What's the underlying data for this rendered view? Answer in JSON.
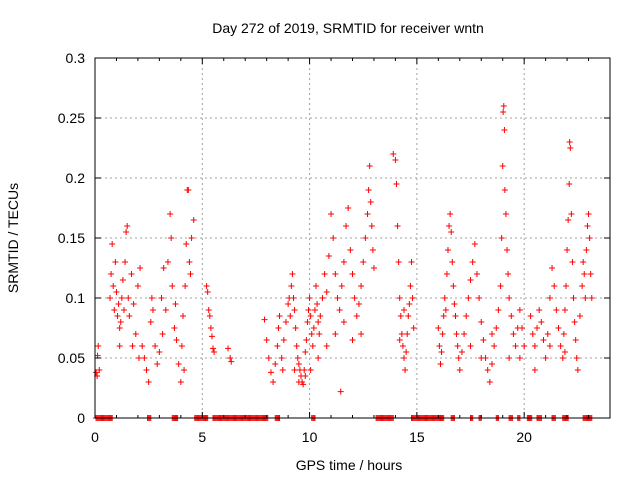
{
  "chart_data": {
    "type": "scatter",
    "title": "Day 272 of 2019, SRMTID for receiver wntn",
    "xlabel": "GPS time / hours",
    "ylabel": "SRMTID / TECUs",
    "xlim": [
      0,
      24
    ],
    "ylim": [
      0,
      0.3
    ],
    "grid": true,
    "marker": "+",
    "color": "#ff0000",
    "x_ticks": [
      0,
      5,
      10,
      15,
      20
    ],
    "x_tick_labels": [
      "0",
      "5",
      "10",
      "15",
      "20"
    ],
    "y_ticks": [
      0,
      0.05,
      0.1,
      0.15,
      0.2,
      0.25,
      0.3
    ],
    "y_tick_labels": [
      "0",
      "0.05",
      "0.1",
      "0.15",
      "0.2",
      "0.25",
      "0.3"
    ],
    "series": [
      {
        "name": "SRMTID",
        "points": [
          [
            0.05,
            0.038
          ],
          [
            0.1,
            0.035
          ],
          [
            0.15,
            0.06
          ],
          [
            0.2,
            0.04
          ],
          [
            0.12,
            0.052
          ],
          [
            0.7,
            0.1
          ],
          [
            0.75,
            0.12
          ],
          [
            0.8,
            0.145
          ],
          [
            0.85,
            0.11
          ],
          [
            0.9,
            0.09
          ],
          [
            0.95,
            0.13
          ],
          [
            1.0,
            0.105
          ],
          [
            1.05,
            0.085
          ],
          [
            1.1,
            0.095
          ],
          [
            1.15,
            0.06
          ],
          [
            1.2,
            0.08
          ],
          [
            1.25,
            0.1
          ],
          [
            1.3,
            0.115
          ],
          [
            1.35,
            0.09
          ],
          [
            1.4,
            0.13
          ],
          [
            1.45,
            0.155
          ],
          [
            1.5,
            0.16
          ],
          [
            1.55,
            0.1
          ],
          [
            1.6,
            0.085
          ],
          [
            1.7,
            0.12
          ],
          [
            1.8,
            0.095
          ],
          [
            1.9,
            0.07
          ],
          [
            2.0,
            0.11
          ],
          [
            2.1,
            0.125
          ],
          [
            2.2,
            0.06
          ],
          [
            2.3,
            0.05
          ],
          [
            2.4,
            0.04
          ],
          [
            2.5,
            0.03
          ],
          [
            2.6,
            0.08
          ],
          [
            2.7,
            0.09
          ],
          [
            2.8,
            0.06
          ],
          [
            2.9,
            0.045
          ],
          [
            3.0,
            0.055
          ],
          [
            3.1,
            0.1
          ],
          [
            3.2,
            0.125
          ],
          [
            3.3,
            0.09
          ],
          [
            3.4,
            0.13
          ],
          [
            3.5,
            0.17
          ],
          [
            3.55,
            0.15
          ],
          [
            3.6,
            0.11
          ],
          [
            3.7,
            0.075
          ],
          [
            3.8,
            0.065
          ],
          [
            3.9,
            0.045
          ],
          [
            4.0,
            0.03
          ],
          [
            4.05,
            0.06
          ],
          [
            4.1,
            0.085
          ],
          [
            4.2,
            0.11
          ],
          [
            4.25,
            0.145
          ],
          [
            4.3,
            0.19
          ],
          [
            4.35,
            0.19
          ],
          [
            4.4,
            0.13
          ],
          [
            4.45,
            0.12
          ],
          [
            4.5,
            0.15
          ],
          [
            4.6,
            0.165
          ],
          [
            1.15,
            0.075
          ],
          [
            1.75,
            0.06
          ],
          [
            2.05,
            0.05
          ],
          [
            2.65,
            0.1
          ],
          [
            3.15,
            0.07
          ],
          [
            3.75,
            0.095
          ],
          [
            4.15,
            0.04
          ],
          [
            5.2,
            0.11
          ],
          [
            5.25,
            0.105
          ],
          [
            5.3,
            0.09
          ],
          [
            5.35,
            0.085
          ],
          [
            5.4,
            0.075
          ],
          [
            5.45,
            0.068
          ],
          [
            5.5,
            0.058
          ],
          [
            5.55,
            0.055
          ],
          [
            6.2,
            0.058
          ],
          [
            6.3,
            0.05
          ],
          [
            6.35,
            0.047
          ],
          [
            7.9,
            0.082
          ],
          [
            8.0,
            0.065
          ],
          [
            8.1,
            0.05
          ],
          [
            8.2,
            0.038
          ],
          [
            8.3,
            0.03
          ],
          [
            8.4,
            0.045
          ],
          [
            8.5,
            0.06
          ],
          [
            8.55,
            0.075
          ],
          [
            8.6,
            0.085
          ],
          [
            8.7,
            0.05
          ],
          [
            8.75,
            0.04
          ],
          [
            8.8,
            0.065
          ],
          [
            8.9,
            0.08
          ],
          [
            9.0,
            0.095
          ],
          [
            9.05,
            0.1
          ],
          [
            9.1,
            0.085
          ],
          [
            9.15,
            0.11
          ],
          [
            9.2,
            0.12
          ],
          [
            9.25,
            0.1
          ],
          [
            9.3,
            0.09
          ],
          [
            9.35,
            0.075
          ],
          [
            9.4,
            0.06
          ],
          [
            9.45,
            0.05
          ],
          [
            9.5,
            0.045
          ],
          [
            9.55,
            0.04
          ],
          [
            9.6,
            0.035
          ],
          [
            9.65,
            0.03
          ],
          [
            9.7,
            0.028
          ],
          [
            9.75,
            0.04
          ],
          [
            9.8,
            0.055
          ],
          [
            9.85,
            0.065
          ],
          [
            9.9,
            0.08
          ],
          [
            9.95,
            0.09
          ],
          [
            10.0,
            0.1
          ],
          [
            10.05,
            0.085
          ],
          [
            10.1,
            0.07
          ],
          [
            10.15,
            0.06
          ],
          [
            10.2,
            0.075
          ],
          [
            10.25,
            0.09
          ],
          [
            10.3,
            0.11
          ],
          [
            10.35,
            0.095
          ],
          [
            10.4,
            0.08
          ],
          [
            10.45,
            0.07
          ],
          [
            10.5,
            0.085
          ],
          [
            10.6,
            0.1
          ],
          [
            10.7,
            0.12
          ],
          [
            10.8,
            0.105
          ],
          [
            10.9,
            0.135
          ],
          [
            11.0,
            0.17
          ],
          [
            11.1,
            0.15
          ],
          [
            11.2,
            0.12
          ],
          [
            11.3,
            0.1
          ],
          [
            11.4,
            0.09
          ],
          [
            11.5,
            0.11
          ],
          [
            11.6,
            0.13
          ],
          [
            11.7,
            0.16
          ],
          [
            11.8,
            0.175
          ],
          [
            11.9,
            0.14
          ],
          [
            12.0,
            0.12
          ],
          [
            12.1,
            0.1
          ],
          [
            12.2,
            0.085
          ],
          [
            12.3,
            0.095
          ],
          [
            12.4,
            0.11
          ],
          [
            12.5,
            0.13
          ],
          [
            12.6,
            0.15
          ],
          [
            12.7,
            0.17
          ],
          [
            12.75,
            0.19
          ],
          [
            12.8,
            0.21
          ],
          [
            12.85,
            0.18
          ],
          [
            12.9,
            0.16
          ],
          [
            12.95,
            0.14
          ],
          [
            13.0,
            0.125
          ],
          [
            9.3,
            0.04
          ],
          [
            9.5,
            0.03
          ],
          [
            9.8,
            0.035
          ],
          [
            10.05,
            0.04
          ],
          [
            10.4,
            0.05
          ],
          [
            10.8,
            0.06
          ],
          [
            11.2,
            0.07
          ],
          [
            11.6,
            0.08
          ],
          [
            12.0,
            0.065
          ],
          [
            12.4,
            0.07
          ],
          [
            11.45,
            0.022
          ],
          [
            13.9,
            0.22
          ],
          [
            14.0,
            0.215
          ],
          [
            14.05,
            0.195
          ],
          [
            14.1,
            0.16
          ],
          [
            14.15,
            0.13
          ],
          [
            14.2,
            0.1
          ],
          [
            14.25,
            0.085
          ],
          [
            14.3,
            0.07
          ],
          [
            14.35,
            0.06
          ],
          [
            14.4,
            0.05
          ],
          [
            14.45,
            0.04
          ],
          [
            14.5,
            0.055
          ],
          [
            14.55,
            0.07
          ],
          [
            14.6,
            0.085
          ],
          [
            14.65,
            0.095
          ],
          [
            14.7,
            0.11
          ],
          [
            14.75,
            0.13
          ],
          [
            14.8,
            0.1
          ],
          [
            14.85,
            0.075
          ],
          [
            14.2,
            0.065
          ],
          [
            14.4,
            0.09
          ],
          [
            16.0,
            0.075
          ],
          [
            16.05,
            0.06
          ],
          [
            16.1,
            0.045
          ],
          [
            16.15,
            0.055
          ],
          [
            16.2,
            0.07
          ],
          [
            16.25,
            0.085
          ],
          [
            16.3,
            0.1
          ],
          [
            16.35,
            0.09
          ],
          [
            16.4,
            0.12
          ],
          [
            16.45,
            0.14
          ],
          [
            16.5,
            0.16
          ],
          [
            16.55,
            0.17
          ],
          [
            16.6,
            0.155
          ],
          [
            16.65,
            0.13
          ],
          [
            16.7,
            0.11
          ],
          [
            16.75,
            0.095
          ],
          [
            16.8,
            0.085
          ],
          [
            16.85,
            0.07
          ],
          [
            16.9,
            0.06
          ],
          [
            16.95,
            0.05
          ],
          [
            17.0,
            0.04
          ],
          [
            17.1,
            0.055
          ],
          [
            17.2,
            0.07
          ],
          [
            17.3,
            0.085
          ],
          [
            17.4,
            0.1
          ],
          [
            17.5,
            0.115
          ],
          [
            17.6,
            0.13
          ],
          [
            17.7,
            0.145
          ],
          [
            17.8,
            0.12
          ],
          [
            17.9,
            0.1
          ],
          [
            18.0,
            0.08
          ],
          [
            18.1,
            0.065
          ],
          [
            18.2,
            0.05
          ],
          [
            18.3,
            0.04
          ],
          [
            18.4,
            0.03
          ],
          [
            18.5,
            0.045
          ],
          [
            18.6,
            0.06
          ],
          [
            18.7,
            0.075
          ],
          [
            18.8,
            0.09
          ],
          [
            18.9,
            0.11
          ],
          [
            18.95,
            0.15
          ],
          [
            19.0,
            0.21
          ],
          [
            19.02,
            0.255
          ],
          [
            19.05,
            0.26
          ],
          [
            19.08,
            0.24
          ],
          [
            19.1,
            0.19
          ],
          [
            19.15,
            0.17
          ],
          [
            19.2,
            0.14
          ],
          [
            19.25,
            0.12
          ],
          [
            19.3,
            0.1
          ],
          [
            19.4,
            0.085
          ],
          [
            19.5,
            0.07
          ],
          [
            19.6,
            0.06
          ],
          [
            19.7,
            0.075
          ],
          [
            19.8,
            0.09
          ],
          [
            19.9,
            0.075
          ],
          [
            20.0,
            0.06
          ],
          [
            17.5,
            0.06
          ],
          [
            18.0,
            0.05
          ],
          [
            18.5,
            0.07
          ],
          [
            19.3,
            0.05
          ],
          [
            19.8,
            0.05
          ],
          [
            20.3,
            0.085
          ],
          [
            20.4,
            0.07
          ],
          [
            20.5,
            0.06
          ],
          [
            20.6,
            0.075
          ],
          [
            20.7,
            0.09
          ],
          [
            20.8,
            0.08
          ],
          [
            20.9,
            0.065
          ],
          [
            21.0,
            0.05
          ],
          [
            21.1,
            0.07
          ],
          [
            21.2,
            0.1
          ],
          [
            21.3,
            0.125
          ],
          [
            21.4,
            0.11
          ],
          [
            21.5,
            0.09
          ],
          [
            21.6,
            0.075
          ],
          [
            21.7,
            0.06
          ],
          [
            21.8,
            0.05
          ],
          [
            21.85,
            0.07
          ],
          [
            21.9,
            0.09
          ],
          [
            21.95,
            0.11
          ],
          [
            22.0,
            0.14
          ],
          [
            22.05,
            0.165
          ],
          [
            22.1,
            0.195
          ],
          [
            22.12,
            0.23
          ],
          [
            22.15,
            0.225
          ],
          [
            22.2,
            0.17
          ],
          [
            22.25,
            0.13
          ],
          [
            22.3,
            0.1
          ],
          [
            22.35,
            0.08
          ],
          [
            22.4,
            0.065
          ],
          [
            22.45,
            0.05
          ],
          [
            22.5,
            0.04
          ],
          [
            22.6,
            0.085
          ],
          [
            22.7,
            0.11
          ],
          [
            22.75,
            0.13
          ],
          [
            22.8,
            0.12
          ],
          [
            22.85,
            0.1
          ],
          [
            22.9,
            0.14
          ],
          [
            22.95,
            0.16
          ],
          [
            23.0,
            0.17
          ],
          [
            23.05,
            0.15
          ],
          [
            23.1,
            0.12
          ],
          [
            23.15,
            0.1
          ],
          [
            20.5,
            0.04
          ],
          [
            21.2,
            0.06
          ],
          [
            21.9,
            0.055
          ]
        ],
        "zero_segments": [
          [
            0.05,
            0.8
          ],
          [
            2.45,
            2.6
          ],
          [
            3.6,
            3.85
          ],
          [
            4.65,
            5.25
          ],
          [
            5.5,
            8.05
          ],
          [
            8.4,
            8.6
          ],
          [
            10.1,
            10.25
          ],
          [
            13.1,
            13.9
          ],
          [
            14.75,
            16.25
          ],
          [
            16.6,
            16.75
          ],
          [
            17.5,
            17.6
          ],
          [
            17.9,
            18.0
          ],
          [
            18.7,
            18.8
          ],
          [
            19.3,
            19.45
          ],
          [
            19.7,
            19.8
          ],
          [
            20.15,
            20.35
          ],
          [
            20.6,
            20.8
          ],
          [
            21.3,
            21.45
          ],
          [
            21.8,
            22.05
          ],
          [
            22.75,
            23.15
          ]
        ]
      }
    ]
  }
}
